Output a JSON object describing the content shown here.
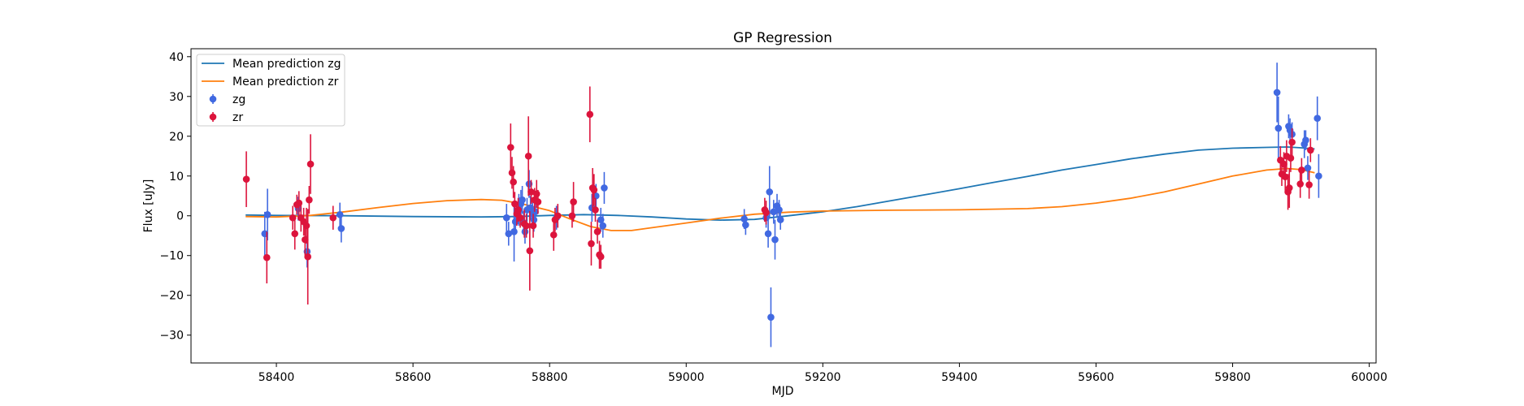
{
  "chart_data": {
    "type": "scatter",
    "title": "GP Regression",
    "xlabel": "MJD",
    "ylabel": "Flux [uJy]",
    "xlim": [
      58275,
      60010
    ],
    "ylim": [
      -37,
      42
    ],
    "xticks": [
      58400,
      58600,
      58800,
      59000,
      59200,
      59400,
      59600,
      59800,
      60000
    ],
    "yticks": [
      -30,
      -20,
      -10,
      0,
      10,
      20,
      30,
      40
    ],
    "grid": false,
    "legend_position": "top-left",
    "colors": {
      "zg_line": "#1f77b4",
      "zr_line": "#ff7f0e",
      "zg_points": "#4169e1",
      "zr_points": "#dc143c"
    },
    "legend": [
      {
        "label": "Mean prediction zg",
        "kind": "line",
        "color": "#1f77b4"
      },
      {
        "label": "Mean prediction zr",
        "kind": "line",
        "color": "#ff7f0e"
      },
      {
        "label": "zg",
        "kind": "errorbar",
        "color": "#4169e1"
      },
      {
        "label": "zr",
        "kind": "errorbar",
        "color": "#dc143c"
      }
    ],
    "series": [
      {
        "name": "Mean prediction zg",
        "kind": "line",
        "color": "#1f77b4",
        "x": [
          58355,
          58400,
          58500,
          58600,
          58700,
          58750,
          58800,
          58850,
          58900,
          58950,
          59000,
          59050,
          59100,
          59150,
          59200,
          59250,
          59300,
          59350,
          59400,
          59450,
          59500,
          59550,
          59600,
          59650,
          59700,
          59750,
          59800,
          59850,
          59880,
          59900,
          59920
        ],
        "y": [
          0.2,
          0.1,
          0.0,
          -0.2,
          -0.3,
          -0.2,
          0.1,
          0.3,
          0.1,
          -0.3,
          -0.8,
          -1.1,
          -0.9,
          0.0,
          1.0,
          2.3,
          3.8,
          5.3,
          6.8,
          8.4,
          9.9,
          11.5,
          12.9,
          14.3,
          15.5,
          16.5,
          17.0,
          17.2,
          17.3,
          17.1,
          16.8
        ]
      },
      {
        "name": "Mean prediction zr",
        "kind": "line",
        "color": "#ff7f0e",
        "x": [
          58355,
          58400,
          58450,
          58500,
          58550,
          58600,
          58650,
          58700,
          58730,
          58760,
          58800,
          58830,
          58860,
          58890,
          58920,
          58950,
          59000,
          59050,
          59100,
          59150,
          59200,
          59300,
          59400,
          59500,
          59550,
          59600,
          59650,
          59700,
          59750,
          59800,
          59850,
          59880,
          59900,
          59920
        ],
        "y": [
          -0.2,
          -0.3,
          0.1,
          1.0,
          2.1,
          3.1,
          3.8,
          4.1,
          3.9,
          3.0,
          1.3,
          -0.8,
          -2.7,
          -3.7,
          -3.7,
          -3.0,
          -1.8,
          -0.6,
          0.4,
          0.9,
          1.2,
          1.4,
          1.5,
          1.8,
          2.3,
          3.2,
          4.4,
          6.0,
          8.0,
          10.0,
          11.5,
          11.9,
          11.6,
          10.8
        ]
      },
      {
        "name": "zg",
        "kind": "errorbar",
        "color": "#4169e1",
        "points": [
          {
            "x": 58383,
            "y": -4.5,
            "err": 5.5
          },
          {
            "x": 58387,
            "y": 0.3,
            "err": 6.5
          },
          {
            "x": 58432,
            "y": 1.8,
            "err": 3.0
          },
          {
            "x": 58445,
            "y": -9.0,
            "err": 4.0
          },
          {
            "x": 58493,
            "y": 0.3,
            "err": 3.0
          },
          {
            "x": 58495,
            "y": -3.2,
            "err": 3.5
          },
          {
            "x": 58737,
            "y": -0.5,
            "err": 3.5
          },
          {
            "x": 58740,
            "y": -4.5,
            "err": 3.0
          },
          {
            "x": 58748,
            "y": -4.0,
            "err": 7.5
          },
          {
            "x": 58750,
            "y": -1.5,
            "err": 3.0
          },
          {
            "x": 58755,
            "y": 1.5,
            "err": 4.0
          },
          {
            "x": 58758,
            "y": 3.0,
            "err": 3.5
          },
          {
            "x": 58760,
            "y": 4.0,
            "err": 3.5
          },
          {
            "x": 58762,
            "y": -1.8,
            "err": 3.0
          },
          {
            "x": 58764,
            "y": -4.0,
            "err": 3.0
          },
          {
            "x": 58767,
            "y": 1.5,
            "err": 3.0
          },
          {
            "x": 58770,
            "y": 8.0,
            "err": 3.5
          },
          {
            "x": 58772,
            "y": 2.0,
            "err": 3.0
          },
          {
            "x": 58775,
            "y": 0.5,
            "err": 3.5
          },
          {
            "x": 58777,
            "y": -1.0,
            "err": 3.0
          },
          {
            "x": 58779,
            "y": 1.0,
            "err": 3.5
          },
          {
            "x": 58810,
            "y": -0.5,
            "err": 3.0
          },
          {
            "x": 58862,
            "y": 2.0,
            "err": 3.5
          },
          {
            "x": 58868,
            "y": 5.0,
            "err": 3.0
          },
          {
            "x": 58875,
            "y": -1.0,
            "err": 3.0
          },
          {
            "x": 58878,
            "y": -2.5,
            "err": 3.0
          },
          {
            "x": 58880,
            "y": 7.0,
            "err": 4.0
          },
          {
            "x": 59085,
            "y": -0.8,
            "err": 2.5
          },
          {
            "x": 59087,
            "y": -2.3,
            "err": 2.5
          },
          {
            "x": 59117,
            "y": -0.5,
            "err": 2.5
          },
          {
            "x": 59120,
            "y": -4.5,
            "err": 3.5
          },
          {
            "x": 59122,
            "y": 6.0,
            "err": 6.5
          },
          {
            "x": 59124,
            "y": -25.5,
            "err": 7.5
          },
          {
            "x": 59128,
            "y": 1.0,
            "err": 3.0
          },
          {
            "x": 59130,
            "y": -6.0,
            "err": 5.0
          },
          {
            "x": 59133,
            "y": 2.5,
            "err": 3.0
          },
          {
            "x": 59136,
            "y": 1.5,
            "err": 2.5
          },
          {
            "x": 59138,
            "y": -1.0,
            "err": 2.5
          },
          {
            "x": 59865,
            "y": 31.0,
            "err": 7.5
          },
          {
            "x": 59867,
            "y": 22.0,
            "err": 8.0
          },
          {
            "x": 59882,
            "y": 22.5,
            "err": 3.0
          },
          {
            "x": 59884,
            "y": 21.5,
            "err": 3.0
          },
          {
            "x": 59887,
            "y": 20.5,
            "err": 3.0
          },
          {
            "x": 59905,
            "y": 18.0,
            "err": 3.5
          },
          {
            "x": 59907,
            "y": 19.0,
            "err": 2.5
          },
          {
            "x": 59910,
            "y": 12.0,
            "err": 3.0
          },
          {
            "x": 59924,
            "y": 24.5,
            "err": 5.5
          },
          {
            "x": 59926,
            "y": 10.0,
            "err": 5.5
          }
        ]
      },
      {
        "name": "zr",
        "kind": "errorbar",
        "color": "#dc143c",
        "points": [
          {
            "x": 58356,
            "y": 9.2,
            "err": 7.0
          },
          {
            "x": 58386,
            "y": -10.5,
            "err": 6.5
          },
          {
            "x": 58424,
            "y": -0.5,
            "err": 3.0
          },
          {
            "x": 58427,
            "y": -4.5,
            "err": 4.0
          },
          {
            "x": 58430,
            "y": 2.8,
            "err": 2.5
          },
          {
            "x": 58433,
            "y": 3.2,
            "err": 3.0
          },
          {
            "x": 58436,
            "y": -0.5,
            "err": 3.5
          },
          {
            "x": 58440,
            "y": -1.5,
            "err": 3.5
          },
          {
            "x": 58442,
            "y": -6.0,
            "err": 4.0
          },
          {
            "x": 58444,
            "y": -2.5,
            "err": 4.5
          },
          {
            "x": 58446,
            "y": -10.3,
            "err": 12.0
          },
          {
            "x": 58448,
            "y": 4.0,
            "err": 3.5
          },
          {
            "x": 58450,
            "y": 13.0,
            "err": 7.5
          },
          {
            "x": 58483,
            "y": -0.5,
            "err": 3.0
          },
          {
            "x": 58743,
            "y": 17.2,
            "err": 6.0
          },
          {
            "x": 58745,
            "y": 10.8,
            "err": 4.0
          },
          {
            "x": 58747,
            "y": 8.5,
            "err": 4.0
          },
          {
            "x": 58749,
            "y": 3.0,
            "err": 3.0
          },
          {
            "x": 58752,
            "y": 0.5,
            "err": 3.0
          },
          {
            "x": 58754,
            "y": 1.5,
            "err": 3.0
          },
          {
            "x": 58757,
            "y": -0.5,
            "err": 2.5
          },
          {
            "x": 58763,
            "y": -2.0,
            "err": 3.5
          },
          {
            "x": 58766,
            "y": -2.5,
            "err": 3.0
          },
          {
            "x": 58769,
            "y": 15.0,
            "err": 10.0
          },
          {
            "x": 58771,
            "y": -8.8,
            "err": 10.0
          },
          {
            "x": 58773,
            "y": 6.0,
            "err": 3.0
          },
          {
            "x": 58776,
            "y": -2.5,
            "err": 3.0
          },
          {
            "x": 58778,
            "y": 4.0,
            "err": 3.0
          },
          {
            "x": 58781,
            "y": 5.5,
            "err": 3.5
          },
          {
            "x": 58783,
            "y": 3.5,
            "err": 3.0
          },
          {
            "x": 58806,
            "y": -4.8,
            "err": 4.0
          },
          {
            "x": 58808,
            "y": -1.0,
            "err": 3.0
          },
          {
            "x": 58812,
            "y": 0.0,
            "err": 3.0
          },
          {
            "x": 58833,
            "y": 0.0,
            "err": 3.0
          },
          {
            "x": 58835,
            "y": 3.5,
            "err": 5.0
          },
          {
            "x": 58859,
            "y": 25.5,
            "err": 7.0
          },
          {
            "x": 58861,
            "y": -7.0,
            "err": 5.5
          },
          {
            "x": 58863,
            "y": 7.0,
            "err": 5.0
          },
          {
            "x": 58865,
            "y": 6.5,
            "err": 4.0
          },
          {
            "x": 58867,
            "y": 1.5,
            "err": 3.0
          },
          {
            "x": 58870,
            "y": -4.0,
            "err": 3.0
          },
          {
            "x": 58873,
            "y": -9.8,
            "err": 3.5
          },
          {
            "x": 58875,
            "y": -10.3,
            "err": 3.0
          },
          {
            "x": 59115,
            "y": 1.5,
            "err": 3.0
          },
          {
            "x": 59117,
            "y": 0.8,
            "err": 3.0
          },
          {
            "x": 59870,
            "y": 14.0,
            "err": 3.5
          },
          {
            "x": 59872,
            "y": 10.5,
            "err": 3.0
          },
          {
            "x": 59875,
            "y": 13.0,
            "err": 3.0
          },
          {
            "x": 59877,
            "y": 9.8,
            "err": 3.5
          },
          {
            "x": 59879,
            "y": 15.0,
            "err": 4.0
          },
          {
            "x": 59881,
            "y": 6.0,
            "err": 4.5
          },
          {
            "x": 59883,
            "y": 7.0,
            "err": 5.0
          },
          {
            "x": 59885,
            "y": 14.5,
            "err": 3.5
          },
          {
            "x": 59887,
            "y": 18.5,
            "err": 3.5
          },
          {
            "x": 59899,
            "y": 8.0,
            "err": 3.5
          },
          {
            "x": 59901,
            "y": 11.5,
            "err": 3.0
          },
          {
            "x": 59912,
            "y": 7.8,
            "err": 3.5
          },
          {
            "x": 59914,
            "y": 16.5,
            "err": 3.0
          }
        ]
      }
    ]
  }
}
